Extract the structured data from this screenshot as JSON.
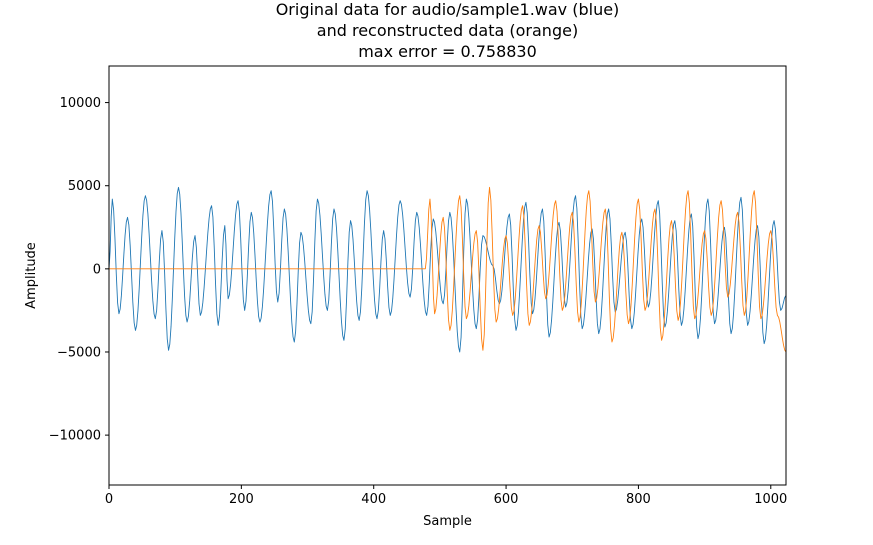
{
  "chart_data": {
    "type": "line",
    "title_lines": [
      "Original data for audio/sample1.wav (blue)",
      "and reconstructed data (orange)",
      "max error = 0.758830"
    ],
    "xlabel": "Sample",
    "ylabel": "Amplitude",
    "xlim": [
      0,
      1023
    ],
    "ylim": [
      -13000,
      12200
    ],
    "xticks": [
      0,
      200,
      400,
      600,
      800,
      1000
    ],
    "yticks": [
      -10000,
      -5000,
      0,
      5000,
      10000
    ],
    "ytick_labels": [
      "−10000",
      "−5000",
      "0",
      "5000",
      "10000"
    ],
    "grid": false,
    "colors": {
      "original": "#1f77b4",
      "reconstructed": "#ff7f0e"
    },
    "series": [
      {
        "key": "original",
        "x": [
          0,
          5,
          15,
          28,
          40,
          55,
          70,
          80,
          90,
          105,
          118,
          130,
          138,
          155,
          165,
          175,
          180,
          195,
          205,
          215,
          228,
          245,
          255,
          265,
          280,
          290,
          305,
          315,
          330,
          340,
          355,
          365,
          378,
          390,
          405,
          415,
          425,
          440,
          455,
          465,
          480,
          490,
          505,
          515,
          530,
          540,
          555,
          565,
          580,
          590,
          605,
          615,
          630,
          640,
          655,
          665,
          680,
          690,
          705,
          715,
          730,
          740,
          755,
          765,
          780,
          790,
          805,
          815,
          830,
          840,
          855,
          865,
          880,
          890,
          905,
          915,
          930,
          940,
          955,
          965,
          980,
          990,
          1005,
          1015,
          1023
        ],
        "y": [
          0,
          4200,
          -2700,
          3100,
          -3700,
          4400,
          -3000,
          2300,
          -4900,
          4900,
          -3200,
          2000,
          -2800,
          3800,
          -3400,
          2600,
          -1800,
          4100,
          -2500,
          3400,
          -3200,
          4700,
          -2000,
          3600,
          -4400,
          2200,
          -3300,
          4200,
          -2500,
          3600,
          -4300,
          2900,
          -3100,
          4700,
          -3000,
          2300,
          -2800,
          4100,
          -1700,
          3400,
          -2800,
          3000,
          -2100,
          3400,
          -5000,
          4200,
          -3600,
          2000,
          200,
          -2100,
          3300,
          -3700,
          4000,
          -2700,
          3600,
          -4100,
          2800,
          -2300,
          4400,
          -3600,
          2400,
          -3900,
          3600,
          -2600,
          2200,
          -3600,
          3000,
          -2300,
          4100,
          -3500,
          2900,
          -3400,
          3300,
          -4200,
          4200,
          -3300,
          2500,
          -3900,
          4300,
          -3400,
          2600,
          -4500,
          2900,
          -2500,
          -1600
        ]
      },
      {
        "key": "reconstructed",
        "x": [
          0,
          100,
          200,
          300,
          400,
          478,
          485,
          492,
          505,
          515,
          530,
          540,
          555,
          565,
          575,
          585,
          600,
          610,
          625,
          635,
          650,
          660,
          675,
          685,
          700,
          710,
          725,
          735,
          750,
          760,
          775,
          785,
          800,
          810,
          825,
          835,
          850,
          860,
          875,
          885,
          900,
          910,
          925,
          935,
          950,
          960,
          975,
          985,
          1000,
          1010,
          1023
        ],
        "y": [
          0,
          0,
          0,
          0,
          0,
          0,
          4200,
          -2700,
          3100,
          -3700,
          4400,
          -3000,
          2300,
          -4900,
          4900,
          -3200,
          2000,
          -2800,
          3800,
          -3400,
          2600,
          -1800,
          4100,
          -2500,
          3400,
          -3200,
          4700,
          -2000,
          3600,
          -4400,
          2200,
          -3300,
          4200,
          -2500,
          3600,
          -4300,
          2900,
          -3100,
          4700,
          -3000,
          2300,
          -2800,
          4100,
          -1700,
          3400,
          -2800,
          4700,
          -3000,
          2300,
          -2800,
          -5000
        ]
      }
    ]
  }
}
